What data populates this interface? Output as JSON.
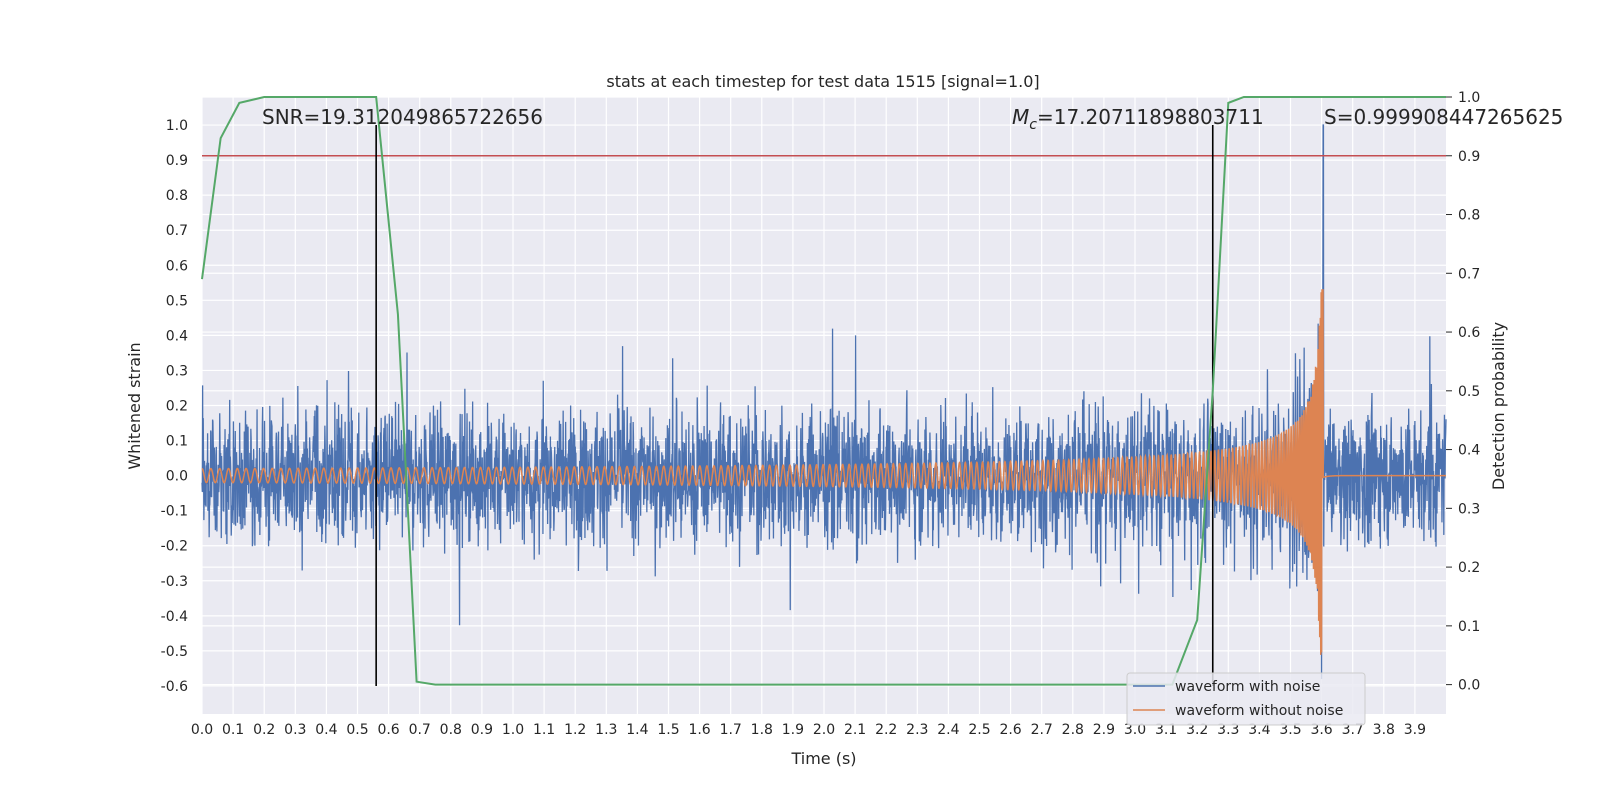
{
  "chart_data": {
    "type": "line",
    "title": "stats at each timestep for test data 1515 [signal=1.0]",
    "xlabel": "Time (s)",
    "ylabel": "Whitened strain",
    "y2label": "Detection probability",
    "xlim": [
      0.0,
      4.0
    ],
    "ylim": [
      -0.68,
      1.08
    ],
    "y2lim": [
      -0.05,
      1.0
    ],
    "x_ticks": [
      "0.0",
      "0.1",
      "0.2",
      "0.3",
      "0.4",
      "0.5",
      "0.6",
      "0.7",
      "0.8",
      "0.9",
      "1.0",
      "1.1",
      "1.2",
      "1.3",
      "1.4",
      "1.5",
      "1.6",
      "1.7",
      "1.8",
      "1.9",
      "2.0",
      "2.1",
      "2.2",
      "2.3",
      "2.4",
      "2.5",
      "2.6",
      "2.7",
      "2.8",
      "2.9",
      "3.0",
      "3.1",
      "3.2",
      "3.3",
      "3.4",
      "3.5",
      "3.6",
      "3.7",
      "3.8",
      "3.9"
    ],
    "y_ticks": [
      "-0.6",
      "-0.5",
      "-0.4",
      "-0.3",
      "-0.2",
      "-0.1",
      "0.0",
      "0.1",
      "0.2",
      "0.3",
      "0.4",
      "0.5",
      "0.6",
      "0.7",
      "0.8",
      "0.9",
      "1.0"
    ],
    "y2_ticks": [
      "0.0",
      "0.1",
      "0.2",
      "0.3",
      "0.4",
      "0.5",
      "0.6",
      "0.7",
      "0.8",
      "0.9",
      "1.0"
    ],
    "annotations": {
      "snr": "SNR=19.312049865722656",
      "mc_symbol": "M",
      "mc_sub": "c",
      "mc_value": "=17.20711898803711",
      "s": "S=0.999908447265625"
    },
    "legend": {
      "placement": "lower-right",
      "entries": [
        "waveform with noise",
        "waveform without noise"
      ]
    },
    "colors": {
      "noise": "#4c72b0",
      "clean": "#dd8452",
      "probability": "#55a868",
      "threshold": "#c44e52",
      "marker": "#000000",
      "background": "#eaeaf2",
      "grid": "#ffffff"
    },
    "threshold_probability": 0.9,
    "vertical_markers": [
      0.56,
      3.25
    ],
    "probability_series": {
      "name": "",
      "x": [
        0.0,
        0.06,
        0.12,
        0.2,
        0.3,
        0.4,
        0.5,
        0.56,
        0.63,
        0.69,
        0.75,
        0.85,
        1.0,
        2.0,
        3.0,
        3.12,
        3.2,
        3.25,
        3.3,
        3.35,
        3.45,
        3.6,
        3.8,
        4.0
      ],
      "y": [
        0.69,
        0.93,
        0.99,
        1.0,
        1.0,
        1.0,
        1.0,
        1.0,
        0.63,
        0.005,
        0.0,
        0.0,
        0.0,
        0.0,
        0.0,
        0.0,
        0.11,
        0.5,
        0.99,
        1.0,
        1.0,
        1.0,
        1.0,
        1.0
      ]
    },
    "noisy_waveform": {
      "name": "waveform with noise",
      "approx_range": [
        -0.58,
        1.0
      ],
      "peak": {
        "x": 3.605,
        "y": 1.0
      }
    },
    "clean_waveform": {
      "name": "waveform without noise",
      "merger_time": 3.605,
      "amplitude_start": 0.02,
      "amplitude_peak": 0.53,
      "frequency_start_hz": 35
    }
  }
}
